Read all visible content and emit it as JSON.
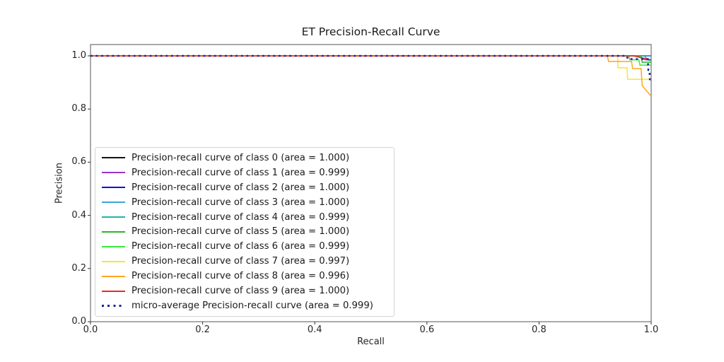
{
  "chart_data": {
    "type": "line",
    "title": "ET Precision-Recall Curve",
    "xlabel": "Recall",
    "ylabel": "Precision",
    "xlim": [
      0.0,
      1.0
    ],
    "ylim": [
      0.0,
      1.0425
    ],
    "xticks": [
      0.0,
      0.2,
      0.4,
      0.6,
      0.8,
      1.0
    ],
    "yticks": [
      0.0,
      0.2,
      0.4,
      0.6,
      0.8,
      1.0
    ],
    "grid": false,
    "legend_position": "lower-left-inside",
    "axis_color": "#555555",
    "tick_color": "#333333",
    "series": [
      {
        "name": "class-0",
        "label": "Precision-recall curve of class 0 (area = 1.000)",
        "area": "1.000",
        "color": "#111111",
        "style": "solid",
        "points": [
          [
            0.0,
            1.0
          ],
          [
            1.0,
            1.0
          ]
        ]
      },
      {
        "name": "class-1",
        "label": "Precision-recall curve of class 1 (area = 0.999)",
        "area": "0.999",
        "color": "#9932CC",
        "style": "solid",
        "points": [
          [
            0.0,
            1.0
          ],
          [
            0.973,
            1.0
          ],
          [
            0.99,
            0.985
          ],
          [
            1.0,
            0.985
          ]
        ]
      },
      {
        "name": "class-2",
        "label": "Precision-recall curve of class 2 (area = 1.000)",
        "area": "1.000",
        "color": "#0F0FE0",
        "style": "solid",
        "points": [
          [
            0.0,
            1.0
          ],
          [
            1.0,
            1.0
          ]
        ]
      },
      {
        "name": "class-3",
        "label": "Precision-recall curve of class 3 (area = 1.000)",
        "area": "1.000",
        "color": "#3BA6DC",
        "style": "solid",
        "points": [
          [
            0.0,
            1.0
          ],
          [
            1.0,
            1.0
          ]
        ]
      },
      {
        "name": "class-4",
        "label": "Precision-recall curve of class 4 (area = 0.999)",
        "area": "0.999",
        "color": "#20B2AA",
        "style": "solid",
        "points": [
          [
            0.0,
            1.0
          ],
          [
            0.988,
            1.0
          ],
          [
            0.995,
            0.983
          ],
          [
            1.0,
            0.983
          ]
        ]
      },
      {
        "name": "class-5",
        "label": "Precision-recall curve of class 5 (area = 1.000)",
        "area": "1.000",
        "color": "#2AB42A",
        "style": "solid",
        "points": [
          [
            0.0,
            1.0
          ],
          [
            0.982,
            1.0
          ],
          [
            0.984,
            0.976
          ],
          [
            1.0,
            0.976
          ]
        ]
      },
      {
        "name": "class-6",
        "label": "Precision-recall curve of class 6 (area = 0.999)",
        "area": "0.999",
        "color": "#39E839",
        "style": "solid",
        "points": [
          [
            0.0,
            1.0
          ],
          [
            0.96,
            1.0
          ],
          [
            0.962,
            0.985
          ],
          [
            0.978,
            0.985
          ],
          [
            0.98,
            0.965
          ],
          [
            1.0,
            0.965
          ]
        ]
      },
      {
        "name": "class-7",
        "label": "Precision-recall curve of class 7 (area = 0.997)",
        "area": "0.997",
        "color": "#F2E734",
        "style": "solid",
        "points": [
          [
            0.0,
            1.0
          ],
          [
            0.94,
            1.0
          ],
          [
            0.941,
            0.955
          ],
          [
            0.957,
            0.955
          ],
          [
            0.958,
            0.912
          ],
          [
            1.0,
            0.912
          ]
        ]
      },
      {
        "name": "class-8",
        "label": "Precision-recall curve of class 8 (area = 0.996)",
        "area": "0.996",
        "color": "#FFA51F",
        "style": "solid",
        "points": [
          [
            0.0,
            1.0
          ],
          [
            0.922,
            1.0
          ],
          [
            0.924,
            0.979
          ],
          [
            0.965,
            0.979
          ],
          [
            0.967,
            0.952
          ],
          [
            0.982,
            0.952
          ],
          [
            0.984,
            0.888
          ],
          [
            1.0,
            0.848
          ]
        ]
      },
      {
        "name": "class-9",
        "label": "Precision-recall curve of class 9 (area = 1.000)",
        "area": "1.000",
        "color": "#EA2A20",
        "style": "solid",
        "points": [
          [
            0.0,
            1.0
          ],
          [
            0.968,
            1.0
          ],
          [
            1.0,
            0.985
          ]
        ]
      },
      {
        "name": "micro-average",
        "label": "micro-average Precision-recall curve (area = 0.999)",
        "area": "0.999",
        "color": "#20209B",
        "style": "dotted",
        "points": [
          [
            0.0,
            1.0
          ],
          [
            0.957,
            1.0
          ],
          [
            0.958,
            0.988
          ],
          [
            0.994,
            0.988
          ],
          [
            0.995,
            0.947
          ],
          [
            0.997,
            0.947
          ],
          [
            0.998,
            0.9
          ],
          [
            1.0,
            0.9
          ]
        ]
      }
    ]
  }
}
